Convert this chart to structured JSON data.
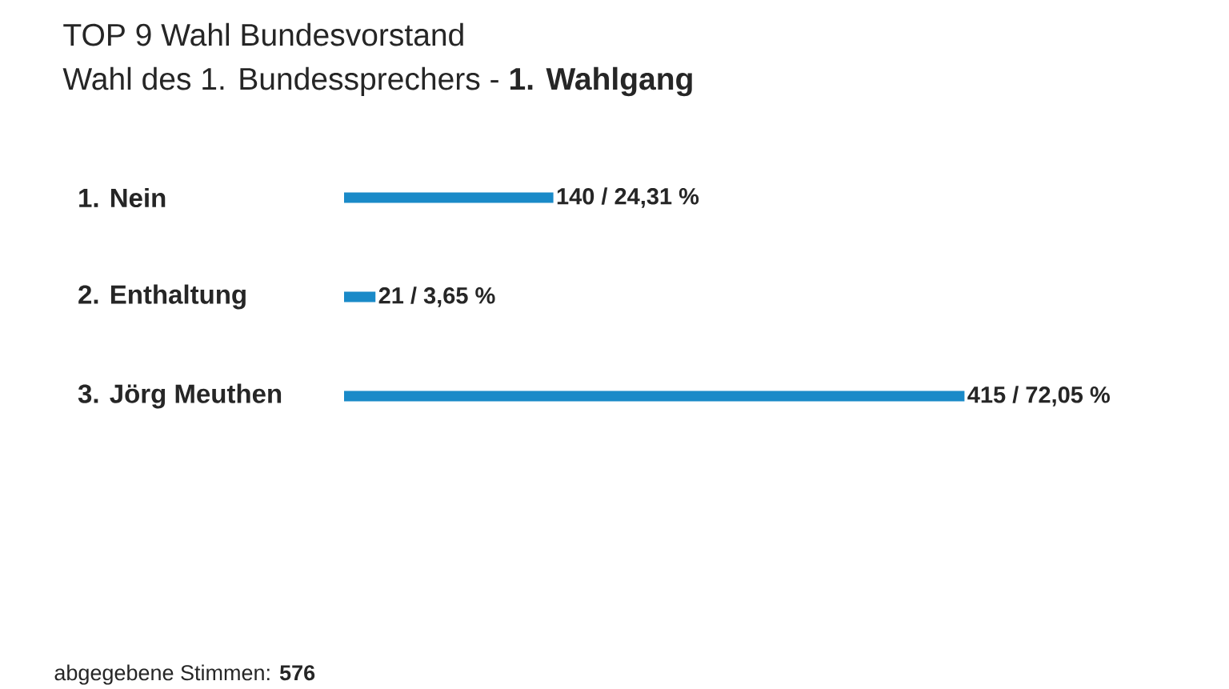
{
  "chart_data": {
    "type": "bar",
    "orientation": "horizontal",
    "title": "TOP 9 Wahl Bundesvorstand",
    "subtitle": "Wahl des 1. Bundessprechers - **1. Wahlgang**",
    "categories": [
      "1. Nein",
      "2. Enthaltung",
      "3. Jörg Meuthen"
    ],
    "values": [
      140,
      21,
      415
    ],
    "value_labels": [
      "140 / 24,31 %",
      "21 / 3,65 %",
      "415 / 72,05 %"
    ],
    "color": "#1a8ac8",
    "annotations": [
      "abgegebene Stimmen: **576**"
    ]
  }
}
